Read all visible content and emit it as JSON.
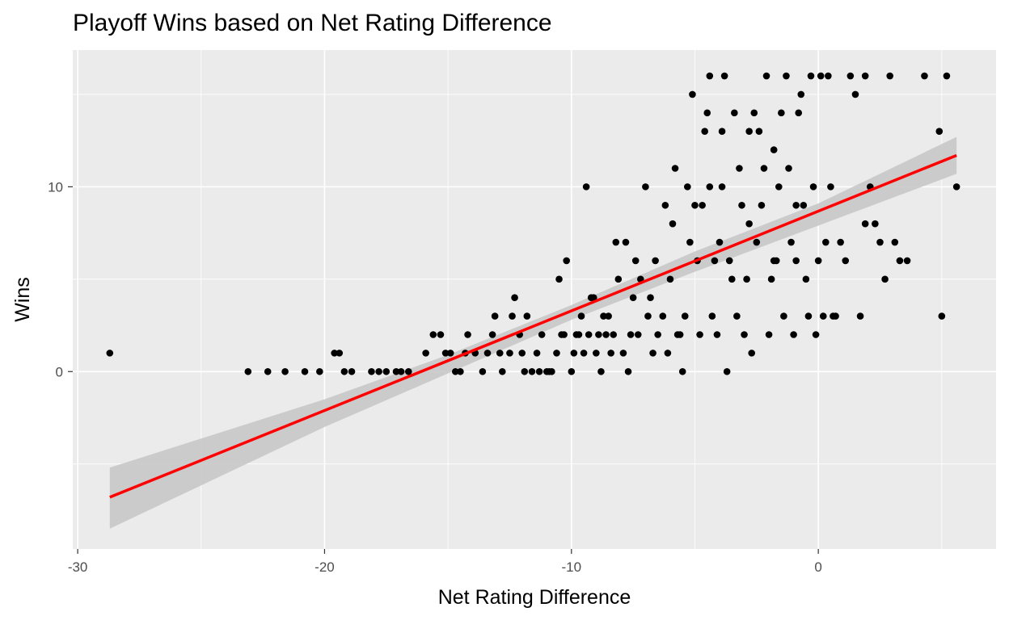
{
  "chart_data": {
    "type": "scatter",
    "title": "Playoff Wins based on Net Rating Difference",
    "xlabel": "Net Rating Difference",
    "ylabel": "Wins",
    "xlim": [
      -30.2,
      7.2
    ],
    "ylim": [
      -9.6,
      17.4
    ],
    "x_ticks": [
      -30,
      -20,
      -10,
      0
    ],
    "x_tick_labels": [
      "-30",
      "-20",
      "-10",
      "0"
    ],
    "y_ticks": [
      0,
      10
    ],
    "y_tick_labels": [
      "0",
      "10"
    ],
    "grid": true,
    "background": "#ebebeb",
    "point_color": "#000000",
    "fit_line": {
      "color": "#ff0000",
      "x": [
        -28.7,
        5.6
      ],
      "y": [
        -6.8,
        11.7
      ]
    },
    "confidence_band": {
      "color": "#c8c8c8",
      "x": [
        -28.7,
        -20,
        -15,
        -10,
        -5,
        0,
        5.6
      ],
      "lower": [
        -8.5,
        -3.0,
        -0.1,
        2.8,
        5.4,
        7.9,
        10.7
      ],
      "upper": [
        -5.2,
        -1.5,
        0.9,
        3.6,
        6.5,
        9.1,
        12.7
      ]
    },
    "points": [
      [
        -28.7,
        1
      ],
      [
        -23.1,
        0
      ],
      [
        -22.3,
        0
      ],
      [
        -21.6,
        0
      ],
      [
        -20.8,
        0
      ],
      [
        -20.2,
        0
      ],
      [
        -19.6,
        1
      ],
      [
        -19.4,
        1
      ],
      [
        -19.2,
        0
      ],
      [
        -18.9,
        0
      ],
      [
        -18.1,
        0
      ],
      [
        -17.8,
        0
      ],
      [
        -17.5,
        0
      ],
      [
        -17.1,
        0
      ],
      [
        -16.9,
        0
      ],
      [
        -16.6,
        0
      ],
      [
        -15.9,
        1
      ],
      [
        -15.6,
        2
      ],
      [
        -15.3,
        2
      ],
      [
        -15.1,
        1
      ],
      [
        -14.9,
        1
      ],
      [
        -14.7,
        0
      ],
      [
        -14.5,
        0
      ],
      [
        -14.3,
        1
      ],
      [
        -14.2,
        2
      ],
      [
        -13.9,
        1
      ],
      [
        -13.4,
        1
      ],
      [
        -13.2,
        2
      ],
      [
        -13.1,
        3
      ],
      [
        -12.9,
        1
      ],
      [
        -12.8,
        0
      ],
      [
        -12.5,
        1
      ],
      [
        -12.4,
        3
      ],
      [
        -12.3,
        4
      ],
      [
        -12.1,
        2
      ],
      [
        -11.9,
        0
      ],
      [
        -11.8,
        3
      ],
      [
        -11.6,
        0
      ],
      [
        -11.4,
        1
      ],
      [
        -11.2,
        2
      ],
      [
        -11.0,
        0
      ],
      [
        -10.8,
        0
      ],
      [
        -10.6,
        1
      ],
      [
        -10.5,
        5
      ],
      [
        -10.3,
        2
      ],
      [
        -10.2,
        6
      ],
      [
        -10.0,
        0
      ],
      [
        -9.9,
        1
      ],
      [
        -9.8,
        2
      ],
      [
        -9.6,
        3
      ],
      [
        -9.5,
        1
      ],
      [
        -9.4,
        10
      ],
      [
        -9.3,
        2
      ],
      [
        -9.2,
        4
      ],
      [
        -9.0,
        1
      ],
      [
        -8.9,
        2
      ],
      [
        -8.8,
        0
      ],
      [
        -8.6,
        2
      ],
      [
        -8.5,
        3
      ],
      [
        -8.3,
        2
      ],
      [
        -8.2,
        7
      ],
      [
        -8.1,
        5
      ],
      [
        -7.9,
        1
      ],
      [
        -7.8,
        7
      ],
      [
        -7.7,
        0
      ],
      [
        -7.5,
        4
      ],
      [
        -7.4,
        6
      ],
      [
        -7.3,
        2
      ],
      [
        -7.2,
        5
      ],
      [
        -7.0,
        10
      ],
      [
        -6.9,
        3
      ],
      [
        -6.8,
        4
      ],
      [
        -6.7,
        1
      ],
      [
        -6.5,
        2
      ],
      [
        -6.3,
        3
      ],
      [
        -6.1,
        1
      ],
      [
        -6.0,
        5
      ],
      [
        -5.9,
        8
      ],
      [
        -5.8,
        11
      ],
      [
        -5.7,
        2
      ],
      [
        -5.5,
        0
      ],
      [
        -5.4,
        3
      ],
      [
        -5.3,
        10
      ],
      [
        -5.2,
        7
      ],
      [
        -5.1,
        15
      ],
      [
        -5.0,
        9
      ],
      [
        -4.9,
        6
      ],
      [
        -4.8,
        2
      ],
      [
        -4.7,
        9
      ],
      [
        -4.6,
        13
      ],
      [
        -4.5,
        14
      ],
      [
        -4.4,
        16
      ],
      [
        -4.3,
        3
      ],
      [
        -4.2,
        6
      ],
      [
        -4.1,
        2
      ],
      [
        -4.0,
        7
      ],
      [
        -3.9,
        10
      ],
      [
        -3.8,
        16
      ],
      [
        -3.7,
        0
      ],
      [
        -3.6,
        6
      ],
      [
        -3.5,
        5
      ],
      [
        -3.4,
        14
      ],
      [
        -3.3,
        3
      ],
      [
        -3.2,
        11
      ],
      [
        -3.1,
        9
      ],
      [
        -3.0,
        2
      ],
      [
        -2.9,
        5
      ],
      [
        -2.8,
        13
      ],
      [
        -2.7,
        1
      ],
      [
        -2.6,
        14
      ],
      [
        -2.5,
        7
      ],
      [
        -2.4,
        13
      ],
      [
        -2.3,
        9
      ],
      [
        -2.2,
        11
      ],
      [
        -2.1,
        16
      ],
      [
        -2.0,
        2
      ],
      [
        -1.9,
        5
      ],
      [
        -1.8,
        12
      ],
      [
        -1.7,
        6
      ],
      [
        -1.6,
        10
      ],
      [
        -1.5,
        14
      ],
      [
        -1.4,
        3
      ],
      [
        -1.3,
        16
      ],
      [
        -1.2,
        11
      ],
      [
        -1.1,
        7
      ],
      [
        -1.0,
        2
      ],
      [
        -0.9,
        6
      ],
      [
        -0.8,
        14
      ],
      [
        -0.7,
        15
      ],
      [
        -0.6,
        9
      ],
      [
        -0.5,
        5
      ],
      [
        -0.4,
        3
      ],
      [
        -0.3,
        16
      ],
      [
        -0.2,
        10
      ],
      [
        -0.1,
        2
      ],
      [
        0.0,
        6
      ],
      [
        0.1,
        16
      ],
      [
        0.2,
        3
      ],
      [
        0.3,
        7
      ],
      [
        0.4,
        16
      ],
      [
        0.5,
        10
      ],
      [
        0.7,
        3
      ],
      [
        0.9,
        7
      ],
      [
        1.1,
        6
      ],
      [
        1.3,
        16
      ],
      [
        1.5,
        15
      ],
      [
        1.7,
        3
      ],
      [
        1.9,
        16
      ],
      [
        2.1,
        10
      ],
      [
        2.3,
        8
      ],
      [
        2.5,
        7
      ],
      [
        2.7,
        5
      ],
      [
        2.9,
        16
      ],
      [
        3.1,
        7
      ],
      [
        3.3,
        6
      ],
      [
        3.6,
        6
      ],
      [
        4.3,
        16
      ],
      [
        4.9,
        13
      ],
      [
        5.0,
        3
      ],
      [
        5.2,
        16
      ],
      [
        5.6,
        10
      ],
      [
        -10.9,
        0
      ],
      [
        -10.4,
        2
      ],
      [
        -9.7,
        2
      ],
      [
        -9.1,
        4
      ],
      [
        -8.7,
        3
      ],
      [
        -8.4,
        1
      ],
      [
        -7.6,
        2
      ],
      [
        -6.6,
        6
      ],
      [
        -6.2,
        9
      ],
      [
        -5.6,
        2
      ],
      [
        -4.4,
        10
      ],
      [
        -3.9,
        13
      ],
      [
        -2.8,
        8
      ],
      [
        -1.8,
        6
      ],
      [
        -0.9,
        9
      ],
      [
        0.6,
        3
      ],
      [
        1.9,
        8
      ],
      [
        -12.0,
        1
      ],
      [
        -11.3,
        0
      ],
      [
        -13.6,
        0
      ]
    ]
  }
}
